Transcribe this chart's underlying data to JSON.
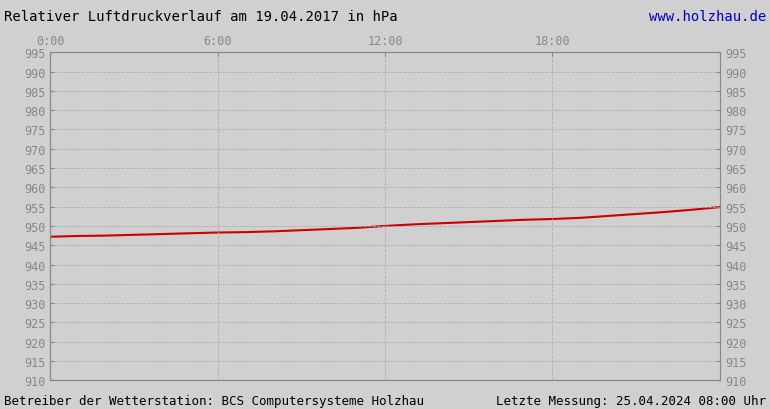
{
  "title_left": "Relativer Luftdruckverlauf am 19.04.2017 in hPa",
  "title_right": "www.holzhau.de",
  "title_right_color": "#0000bb",
  "footer_left": "Betreiber der Wetterstation: BCS Computersysteme Holzhau",
  "footer_right": "Letzte Messung: 25.04.2024 08:00 Uhr",
  "ylim": [
    910,
    995
  ],
  "ytick_step": 5,
  "xlim": [
    0,
    1440
  ],
  "xtick_positions": [
    0,
    360,
    720,
    1080,
    1440
  ],
  "xtick_labels": [
    "0:00",
    "6:00",
    "12:00",
    "18:00",
    ""
  ],
  "grid_color": "#aaaaaa",
  "background_color": "#d0d0d0",
  "plot_bg_color": "#d0d0d0",
  "line_color": "#cc0000",
  "line_width": 1.5,
  "title_fontsize": 10,
  "tick_fontsize": 8.5,
  "footer_fontsize": 9,
  "pressure_x": [
    0,
    60,
    120,
    180,
    240,
    300,
    360,
    420,
    480,
    540,
    600,
    660,
    720,
    780,
    840,
    900,
    960,
    1020,
    1080,
    1140,
    1200,
    1260,
    1320,
    1380,
    1440
  ],
  "pressure_y": [
    947.2,
    947.4,
    947.5,
    947.7,
    947.9,
    948.1,
    948.3,
    948.4,
    948.6,
    948.9,
    949.2,
    949.5,
    950.0,
    950.4,
    950.7,
    951.0,
    951.3,
    951.6,
    951.8,
    952.1,
    952.6,
    953.1,
    953.6,
    954.2,
    954.9
  ]
}
